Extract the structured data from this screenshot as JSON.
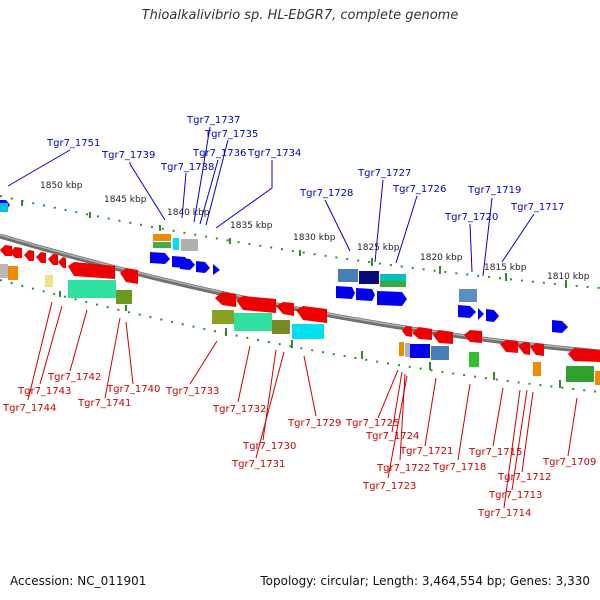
{
  "title": "Thioalkalivibrio sp. HL-EbGR7, complete genome",
  "footer": {
    "accession": "Accession: NC_011901",
    "summary": "Topology: circular; Length: 3,464,554 bp; Genes: 3,330"
  },
  "colors": {
    "top_label": "#0000cc",
    "bottom_label": "#cc0000",
    "backbone": "#808080",
    "tick": "#2e8b2e",
    "forward_gene": "#0000ee",
    "reverse_gene": "#ee0000"
  },
  "scale_labels": [
    "1850 kbp",
    "1845 kbp",
    "1840 kbp",
    "1835 kbp",
    "1830 kbp",
    "1825 kbp",
    "1820 kbp",
    "1815 kbp",
    "1810 kbp"
  ],
  "top_labels": [
    "Tgr7_1751",
    "Tgr7_1739",
    "Tgr7_1738",
    "Tgr7_1737",
    "Tgr7_1735",
    "Tgr7_1736",
    "Tgr7_1734",
    "Tgr7_1728",
    "Tgr7_1727",
    "Tgr7_1726",
    "Tgr7_1720",
    "Tgr7_1719",
    "Tgr7_1717"
  ],
  "bottom_labels": [
    "Tgr7_1742",
    "Tgr7_1743",
    "Tgr7_1744",
    "Tgr7_1740",
    "Tgr7_1741",
    "Tgr7_1733",
    "Tgr7_1732",
    "Tgr7_1730",
    "Tgr7_1731",
    "Tgr7_1729",
    "Tgr7_1725",
    "Tgr7_1724",
    "Tgr7_1721",
    "Tgr7_1722",
    "Tgr7_1723",
    "Tgr7_1718",
    "Tgr7_1715",
    "Tgr7_1712",
    "Tgr7_1713",
    "Tgr7_1714",
    "Tgr7_1709"
  ]
}
